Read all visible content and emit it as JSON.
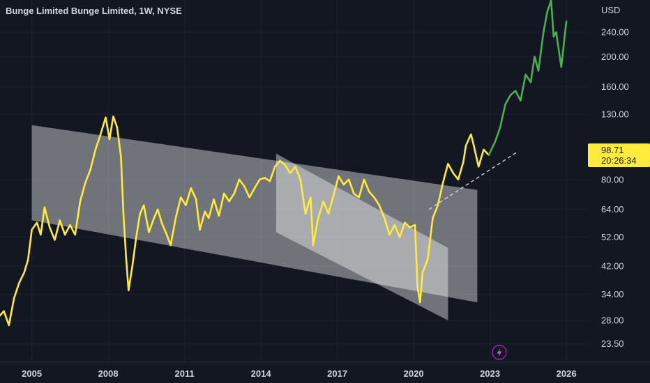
{
  "header": {
    "title": "Bunge Limited Bunge Limited, 1W, NYSE",
    "currency": "USD"
  },
  "current": {
    "price": "98.71",
    "countdown": "20:26:34",
    "price_value": 98.71
  },
  "colors": {
    "background": "#131722",
    "grid": "#1e222d",
    "price_line": "#ffeb3b",
    "highlight_line": "#4caf50",
    "channel_fill": "#ffffff",
    "label_bg": "#ffeb3b"
  },
  "icons": {
    "lightning": "lightning-icon"
  },
  "chart_data": {
    "type": "line",
    "title": "Bunge Limited Bunge Limited, 1W, NYSE",
    "y_scale": "log",
    "ylim": [
      20.5,
      305
    ],
    "xlim": [
      2003.75,
      2026.9
    ],
    "grid": true,
    "y_ticks": [
      {
        "value": 240,
        "label": "240.00"
      },
      {
        "value": 200,
        "label": "200.00"
      },
      {
        "value": 160,
        "label": "160.00"
      },
      {
        "value": 130,
        "label": "130.00"
      },
      {
        "value": 80,
        "label": "80.00"
      },
      {
        "value": 64,
        "label": "64.00"
      },
      {
        "value": 52,
        "label": "52.00"
      },
      {
        "value": 42,
        "label": "42.00"
      },
      {
        "value": 34,
        "label": "34.00"
      },
      {
        "value": 28,
        "label": "28.00"
      },
      {
        "value": 23.5,
        "label": "23.50"
      }
    ],
    "x_ticks": [
      {
        "value": 2005,
        "label": "2005"
      },
      {
        "value": 2008,
        "label": "2008"
      },
      {
        "value": 2011,
        "label": "2011"
      },
      {
        "value": 2014,
        "label": "2014"
      },
      {
        "value": 2017,
        "label": "2017"
      },
      {
        "value": 2020,
        "label": "2020"
      },
      {
        "value": 2023,
        "label": "2023"
      },
      {
        "value": 2026,
        "label": "2026"
      }
    ],
    "series": [
      {
        "color": "#ffeb3b",
        "points": [
          [
            2003.75,
            29
          ],
          [
            2003.9,
            30
          ],
          [
            2004.1,
            27
          ],
          [
            2004.3,
            33
          ],
          [
            2004.5,
            37
          ],
          [
            2004.7,
            40
          ],
          [
            2004.85,
            44
          ],
          [
            2005.0,
            55
          ],
          [
            2005.2,
            58
          ],
          [
            2005.35,
            53
          ],
          [
            2005.5,
            65
          ],
          [
            2005.7,
            56
          ],
          [
            2005.9,
            51
          ],
          [
            2006.1,
            59
          ],
          [
            2006.3,
            53
          ],
          [
            2006.5,
            57
          ],
          [
            2006.7,
            53
          ],
          [
            2006.9,
            68
          ],
          [
            2007.1,
            78
          ],
          [
            2007.3,
            86
          ],
          [
            2007.5,
            100
          ],
          [
            2007.7,
            112
          ],
          [
            2007.9,
            127
          ],
          [
            2008.05,
            108
          ],
          [
            2008.2,
            128
          ],
          [
            2008.35,
            118
          ],
          [
            2008.5,
            95
          ],
          [
            2008.6,
            62
          ],
          [
            2008.7,
            45
          ],
          [
            2008.8,
            35
          ],
          [
            2008.95,
            42
          ],
          [
            2009.1,
            52
          ],
          [
            2009.25,
            62
          ],
          [
            2009.4,
            66
          ],
          [
            2009.6,
            54
          ],
          [
            2009.8,
            60
          ],
          [
            2009.95,
            64
          ],
          [
            2010.1,
            58
          ],
          [
            2010.3,
            53
          ],
          [
            2010.45,
            49
          ],
          [
            2010.65,
            60
          ],
          [
            2010.85,
            70
          ],
          [
            2011.05,
            66
          ],
          [
            2011.25,
            75
          ],
          [
            2011.45,
            69
          ],
          [
            2011.6,
            55
          ],
          [
            2011.8,
            63
          ],
          [
            2011.95,
            60
          ],
          [
            2012.15,
            69
          ],
          [
            2012.35,
            61
          ],
          [
            2012.55,
            72
          ],
          [
            2012.75,
            68
          ],
          [
            2012.95,
            72
          ],
          [
            2013.15,
            80
          ],
          [
            2013.35,
            76
          ],
          [
            2013.55,
            70
          ],
          [
            2013.75,
            75
          ],
          [
            2013.95,
            80
          ],
          [
            2014.15,
            81
          ],
          [
            2014.35,
            79
          ],
          [
            2014.55,
            88
          ],
          [
            2014.75,
            92
          ],
          [
            2014.95,
            89
          ],
          [
            2015.15,
            84
          ],
          [
            2015.35,
            88
          ],
          [
            2015.55,
            80
          ],
          [
            2015.75,
            62
          ],
          [
            2015.95,
            70
          ],
          [
            2016.05,
            49
          ],
          [
            2016.25,
            60
          ],
          [
            2016.45,
            68
          ],
          [
            2016.65,
            62
          ],
          [
            2016.85,
            71
          ],
          [
            2017.05,
            82
          ],
          [
            2017.25,
            77
          ],
          [
            2017.45,
            80
          ],
          [
            2017.65,
            72
          ],
          [
            2017.85,
            70
          ],
          [
            2018.05,
            80
          ],
          [
            2018.25,
            73
          ],
          [
            2018.45,
            70
          ],
          [
            2018.65,
            66
          ],
          [
            2018.85,
            60
          ],
          [
            2019.05,
            53
          ],
          [
            2019.25,
            57
          ],
          [
            2019.45,
            52
          ],
          [
            2019.65,
            58
          ],
          [
            2019.85,
            56
          ],
          [
            2020.05,
            57
          ],
          [
            2020.15,
            36
          ],
          [
            2020.25,
            32
          ],
          [
            2020.35,
            40
          ],
          [
            2020.55,
            44
          ],
          [
            2020.75,
            60
          ],
          [
            2020.95,
            66
          ],
          [
            2021.15,
            78
          ],
          [
            2021.35,
            90
          ],
          [
            2021.55,
            84
          ],
          [
            2021.75,
            80
          ],
          [
            2021.95,
            91
          ],
          [
            2022.05,
            103
          ],
          [
            2022.25,
            112
          ],
          [
            2022.35,
            104
          ],
          [
            2022.55,
            88
          ],
          [
            2022.75,
            100
          ],
          [
            2022.95,
            96
          ]
        ]
      },
      {
        "color": "#4caf50",
        "points": [
          [
            2022.95,
            96
          ],
          [
            2023.2,
            106
          ],
          [
            2023.4,
            118
          ],
          [
            2023.6,
            140
          ],
          [
            2023.8,
            150
          ],
          [
            2024.0,
            155
          ],
          [
            2024.2,
            144
          ],
          [
            2024.4,
            175
          ],
          [
            2024.6,
            165
          ],
          [
            2024.75,
            200
          ],
          [
            2024.9,
            180
          ],
          [
            2025.1,
            240
          ],
          [
            2025.25,
            280
          ],
          [
            2025.4,
            304
          ],
          [
            2025.5,
            232
          ],
          [
            2025.6,
            240
          ],
          [
            2025.7,
            210
          ],
          [
            2025.8,
            185
          ],
          [
            2025.95,
            240
          ],
          [
            2026.0,
            260
          ]
        ]
      }
    ],
    "channels": [
      {
        "points": [
          [
            2005.0,
            120
          ],
          [
            2022.5,
            74
          ],
          [
            2022.5,
            32
          ],
          [
            2005.0,
            59
          ]
        ]
      },
      {
        "points": [
          [
            2014.6,
            97
          ],
          [
            2021.35,
            48
          ],
          [
            2021.35,
            28
          ],
          [
            2014.6,
            54
          ]
        ]
      }
    ],
    "trendline": {
      "points": [
        [
          2020.6,
          64
        ],
        [
          2024.05,
          98
        ]
      ],
      "style": "dashed"
    }
  }
}
